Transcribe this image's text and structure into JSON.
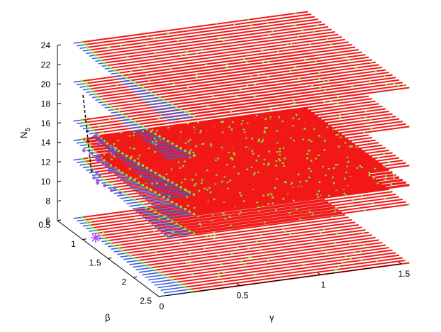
{
  "chart_data": {
    "type": "scatter3d",
    "title": "",
    "zlabel": {
      "main": "N",
      "sub": "5"
    },
    "xlabel": "γ",
    "ylabel": "β",
    "xlim": [
      0,
      1.5
    ],
    "ylim": [
      0.5,
      2.5
    ],
    "zlim": [
      6,
      24
    ],
    "x_ticks": [
      "0",
      "0.5",
      "1",
      "1.5"
    ],
    "x_tick_values": [
      0,
      0.5,
      1,
      1.5
    ],
    "y_ticks": [
      "0.5",
      "1",
      "1.5",
      "2",
      "2.5"
    ],
    "y_tick_values": [
      0.5,
      1,
      1.5,
      2,
      2.5
    ],
    "z_ticks": [
      "6",
      "8",
      "10",
      "12",
      "14",
      "16",
      "18",
      "20",
      "22",
      "24"
    ],
    "z_tick_values": [
      6,
      8,
      10,
      12,
      14,
      16,
      18,
      20,
      22,
      24
    ],
    "grid": false,
    "colors": {
      "region_a": "#3a5fe0",
      "region_b": "#7ee83a",
      "region_c": "#f21818",
      "region_d": "#8a3fd8",
      "marker": "#c040ff",
      "dashed_line": "#000000"
    },
    "layers": [
      {
        "n5": 6,
        "gamma_range": [
          0.1,
          1.55
        ],
        "beta_range": [
          0.5,
          2.5
        ]
      },
      {
        "n5": 12,
        "gamma_range": [
          0.1,
          1.55
        ],
        "beta_range": [
          0.5,
          2.5
        ]
      },
      {
        "n5": 14,
        "gamma_range": [
          0.1,
          1.55
        ],
        "beta_range": [
          0.5,
          2.5
        ]
      },
      {
        "n5": 16,
        "gamma_range": [
          0.1,
          1.55
        ],
        "beta_range": [
          0.5,
          2.5
        ]
      },
      {
        "n5": 20,
        "gamma_range": [
          0.1,
          1.55
        ],
        "beta_range": [
          0.5,
          2.5
        ]
      },
      {
        "n5": 24,
        "gamma_range": [
          0.1,
          1.55
        ],
        "beta_range": [
          0.5,
          2.5
        ]
      }
    ],
    "dense_layer_n5": 14,
    "marker_point": {
      "gamma": 0.08,
      "beta": 1.0,
      "n5": 6
    },
    "dashed_line": {
      "gamma": 0.11,
      "beta": 0.82,
      "n5_range": [
        12,
        20
      ]
    }
  }
}
